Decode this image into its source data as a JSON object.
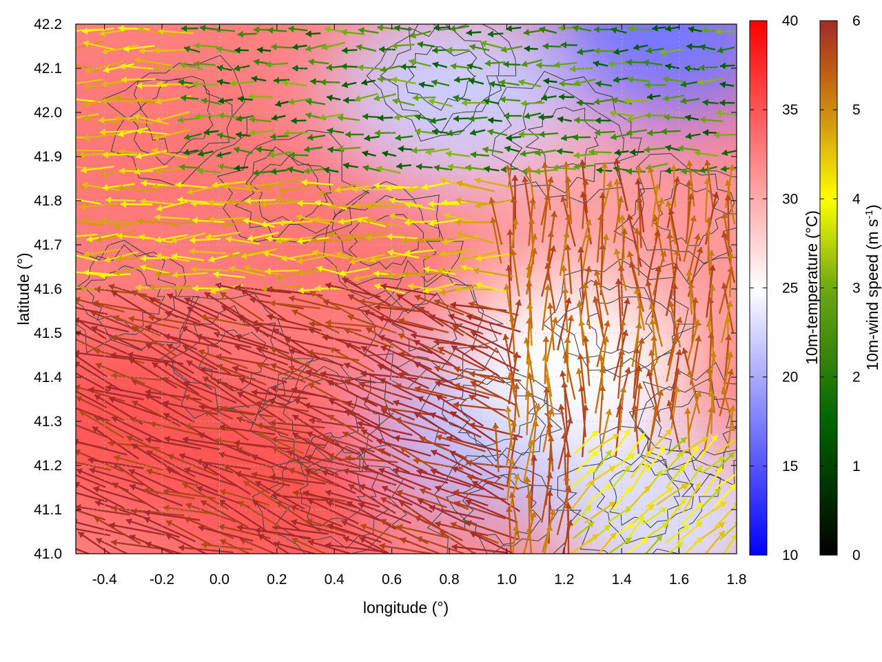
{
  "chart_data": {
    "type": "heatmap",
    "title": "",
    "xlabel": "longitude (°)",
    "ylabel": "latitude (°)",
    "xlim": [
      -0.5,
      1.8
    ],
    "ylim": [
      41.0,
      42.2
    ],
    "x_ticks": [
      "-0.4",
      "-0.2",
      "0.0",
      "0.2",
      "0.4",
      "0.6",
      "0.8",
      "1.0",
      "1.2",
      "1.4",
      "1.6",
      "1.8"
    ],
    "y_ticks": [
      "41.0",
      "41.1",
      "41.2",
      "41.3",
      "41.4",
      "41.5",
      "41.6",
      "41.7",
      "41.8",
      "41.9",
      "42.0",
      "42.1",
      "42.2"
    ],
    "grid": true,
    "temperature_colorbar": {
      "label_main": "10m-temperature (°C)",
      "range": [
        10,
        40
      ],
      "ticks": [
        "10",
        "15",
        "20",
        "25",
        "30",
        "35",
        "40"
      ],
      "colors": [
        "#0000ff",
        "#ffffff",
        "#ff0000"
      ]
    },
    "wind_colorbar": {
      "label_main": "10m-wind speed (m s",
      "label_exp": "-1",
      "label_close": ")",
      "range": [
        0,
        6
      ],
      "ticks": [
        "0",
        "1",
        "2",
        "3",
        "4",
        "5",
        "6"
      ],
      "colors": [
        "#000000",
        "#006400",
        "#6fa812",
        "#ffff00",
        "#d4a010",
        "#c06010",
        "#a52a2a"
      ]
    },
    "temperature_regions": [
      {
        "lon": -0.3,
        "lat": 41.3,
        "t": 35
      },
      {
        "lon": -0.3,
        "lat": 41.9,
        "t": 33
      },
      {
        "lon": 0.2,
        "lat": 41.15,
        "t": 35
      },
      {
        "lon": 0.4,
        "lat": 41.65,
        "t": 33
      },
      {
        "lon": 0.6,
        "lat": 41.85,
        "t": 33
      },
      {
        "lon": 1.1,
        "lat": 41.95,
        "t": 30
      },
      {
        "lon": 0.95,
        "lat": 41.28,
        "t": 21
      },
      {
        "lon": 1.25,
        "lat": 41.45,
        "t": 25
      },
      {
        "lon": 1.55,
        "lat": 41.08,
        "t": 23
      },
      {
        "lon": 1.55,
        "lat": 42.17,
        "t": 17
      },
      {
        "lon": 0.8,
        "lat": 42.05,
        "t": 22
      },
      {
        "lon": 1.7,
        "lat": 41.7,
        "t": 31
      }
    ],
    "wind_regimes": [
      {
        "region": "southwest",
        "direction": "west-northwest",
        "speed": 6
      },
      {
        "region": "northwest",
        "direction": "west",
        "speed": 3.5
      },
      {
        "region": "north",
        "direction": "west",
        "speed": 1.5
      },
      {
        "region": "east-central",
        "direction": "north",
        "speed": 5
      },
      {
        "region": "southeast",
        "direction": "northeast",
        "speed": 3
      }
    ]
  }
}
